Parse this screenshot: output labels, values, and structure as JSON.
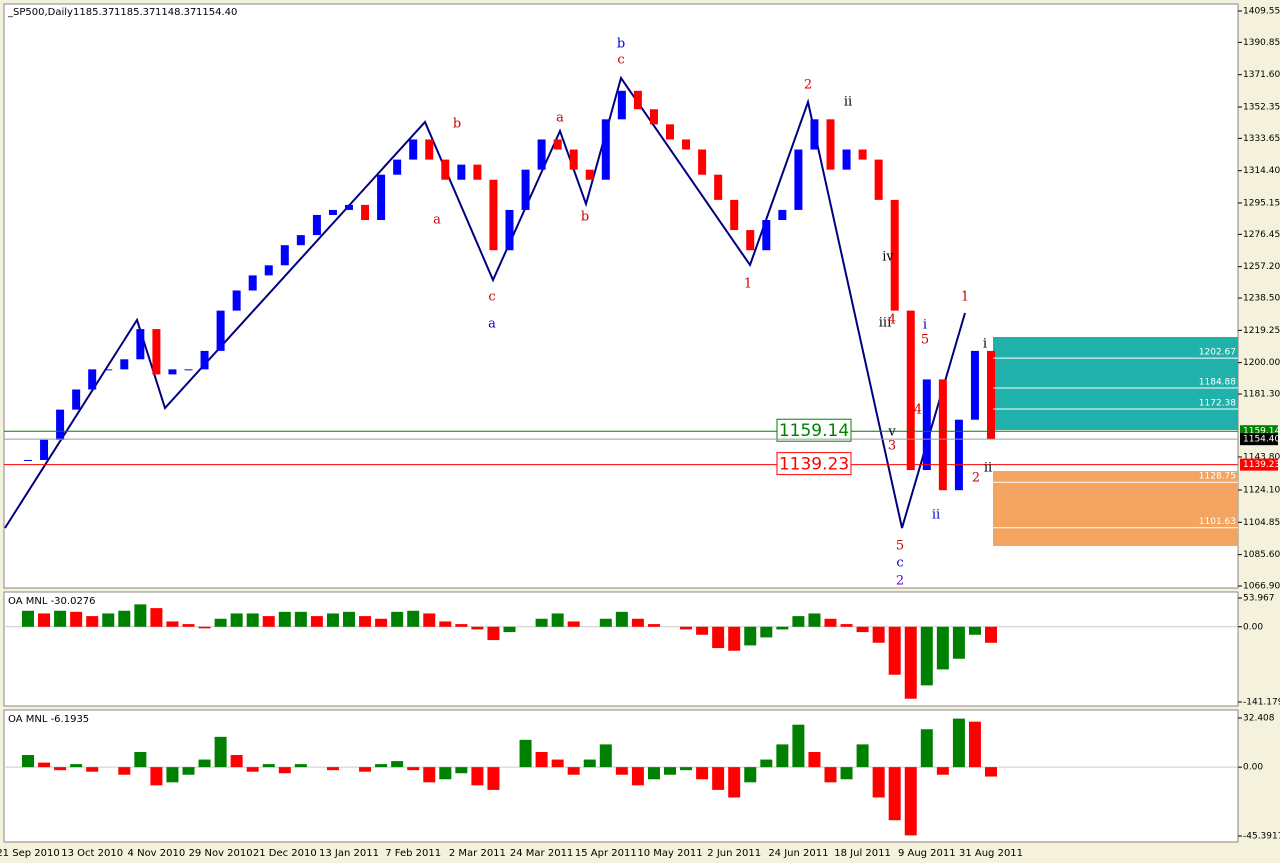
{
  "chart_data": [
    {
      "type": "candlestick",
      "title": "_SP500,Daily",
      "ohlc": [
        1185.37,
        1185.37,
        1148.37,
        {
          "value": 1154.4,
          "label": "1154.40"
        }
      ],
      "categories": [
        "21 Sep 2010",
        null,
        null,
        null,
        "13 Oct 2010",
        null,
        null,
        null,
        "4 Nov 2010",
        null,
        null,
        null,
        "29 Nov 2010",
        null,
        null,
        null,
        "21 Dec 2010",
        null,
        null,
        null,
        "13 Jan 2011",
        null,
        null,
        null,
        "7 Feb 2011",
        null,
        null,
        null,
        "2 Mar 2011",
        null,
        null,
        null,
        "24 Mar 2011",
        null,
        null,
        null,
        "15 Apr 2011",
        null,
        null,
        null,
        "10 May 2011",
        null,
        null,
        null,
        "2 Jun 2011",
        null,
        null,
        null,
        "24 Jun 2011",
        null,
        null,
        null,
        "18 Jul 2011",
        null,
        null,
        null,
        "9 Aug 2011",
        null,
        null,
        null,
        "31 Aug 2011"
      ],
      "values": [
        1142,
        1154,
        1172,
        1184,
        1196,
        1196,
        1202,
        1220,
        1193,
        1196,
        1196,
        1207,
        1231,
        1243,
        1252,
        1258,
        1270,
        1276,
        1288,
        1291,
        1294,
        1285,
        1312,
        1321,
        1333,
        1321,
        1309,
        1318,
        1309,
        1267,
        1291,
        1315,
        1333,
        1327,
        1315,
        1309,
        1345,
        1362,
        1351,
        1342,
        1333,
        1327,
        1312,
        1297,
        1279,
        1267,
        1285,
        1291,
        1327,
        1345,
        1315,
        1327,
        1321,
        1297,
        1231,
        1136,
        1190,
        1124,
        1166,
        1207,
        1154.4
      ],
      "up_color": "#0000ff",
      "down_color": "#ff0000",
      "ylim": [
        1066.9,
        1409.55
      ],
      "yticks": [
        1409.55,
        1390.85,
        {
          "value": 1371.6,
          "label": "1371.60"
        },
        1352.35,
        1333.65,
        {
          "value": 1314.4,
          "label": "1314.40"
        },
        1295.15,
        1276.45,
        {
          "value": 1257.2,
          "label": "1257.20"
        },
        {
          "value": 1238.5,
          "label": "1238.50"
        },
        1219.25,
        {
          "value": 1200,
          "label": "1200.00"
        },
        {
          "value": 1181.3,
          "label": "1181.30"
        },
        {
          "value": 1143.8,
          "label": "1143.80"
        },
        {
          "value": 1124.1,
          "label": "1124.10"
        },
        1104.85,
        {
          "value": 1085.6,
          "label": "1085.60"
        },
        {
          "value": 1066.9,
          "label": "1066.90"
        }
      ],
      "levels": [
        {
          "value": 1159.14,
          "color": "#008000"
        },
        {
          "value": 1139.23,
          "color": "#ff0000"
        }
      ],
      "zone_levels": [
        1202.67,
        1184.88,
        1172.38,
        1128.75,
        1101.63
      ],
      "annotations": [
        {
          "text": "b",
          "color": "#0000cc"
        },
        {
          "text": "c",
          "color": "#cc0000"
        },
        {
          "text": "a",
          "color": "#cc0000"
        },
        {
          "text": "b",
          "color": "#cc0000"
        },
        {
          "text": "c",
          "color": "#cc0000"
        },
        {
          "text": "a",
          "color": "#0000cc"
        },
        {
          "text": "a",
          "color": "#cc0000"
        },
        {
          "text": "b",
          "color": "#cc0000"
        },
        {
          "text": "2",
          "color": "#cc0000"
        },
        {
          "text": "ii",
          "color": "#000000"
        },
        {
          "text": "1",
          "color": "#cc0000"
        },
        {
          "text": "iv",
          "color": "#000000"
        },
        {
          "text": "iii",
          "color": "#000000"
        },
        {
          "text": "4",
          "color": "#cc0000"
        },
        {
          "text": "5",
          "color": "#cc0000"
        },
        {
          "text": "i",
          "color": "#0000cc"
        },
        {
          "text": "4",
          "color": "#cc0000"
        },
        {
          "text": "3",
          "color": "#cc0000"
        },
        {
          "text": "v",
          "color": "#000000"
        },
        {
          "text": "5",
          "color": "#cc0000"
        },
        {
          "text": "c",
          "color": "#0000cc"
        },
        {
          "text": "2",
          "color": "#6600cc"
        },
        {
          "text": "ii",
          "color": "#0000cc"
        },
        {
          "text": "1",
          "color": "#cc0000"
        },
        {
          "text": "i",
          "color": "#000000"
        },
        {
          "text": "2",
          "color": "#cc0000"
        },
        {
          "text": "ii",
          "color": "#000000"
        }
      ]
    },
    {
      "type": "histogram",
      "title": "OA MNL -30.0276",
      "values": [
        30,
        25,
        30,
        28,
        20,
        25,
        30,
        42,
        35,
        10,
        5,
        -3,
        15,
        25,
        25,
        20,
        28,
        28,
        20,
        25,
        28,
        20,
        15,
        28,
        30,
        25,
        10,
        5,
        -5,
        -25,
        -10,
        0,
        15,
        25,
        10,
        0,
        15,
        28,
        15,
        5,
        0,
        -5,
        -15,
        -40,
        -45,
        -35,
        -20,
        -5,
        20,
        25,
        15,
        5,
        -10,
        -30,
        -90,
        -135,
        -110,
        -80,
        -60,
        -15,
        -30.0276
      ],
      "rising_color": "#008000",
      "falling_color": "#ff0000",
      "ylim": [
        -141.179,
        53.967
      ],
      "yticks": [
        53.967,
        {
          "value": 0,
          "label": "0.00"
        },
        -141.179
      ]
    },
    {
      "type": "histogram",
      "title": "OA MNL -6.1935",
      "values": [
        8,
        3,
        -2,
        2,
        -3,
        0,
        -5,
        10,
        -12,
        -10,
        -5,
        5,
        20,
        8,
        -3,
        2,
        -4,
        2,
        0,
        -2,
        0,
        -3,
        2,
        4,
        -2,
        -10,
        -8,
        -4,
        -12,
        -15,
        0,
        18,
        10,
        5,
        -5,
        5,
        15,
        -5,
        -12,
        -8,
        -5,
        -2,
        -8,
        -15,
        -20,
        -10,
        5,
        15,
        28,
        10,
        -10,
        -8,
        15,
        -20,
        -35,
        -45,
        25,
        -5,
        32,
        30,
        -6.1935
      ],
      "rising_color": "#008000",
      "falling_color": "#ff0000",
      "ylim": [
        -45.3917,
        32.408
      ],
      "yticks": [
        32.408,
        {
          "value": 0,
          "label": "0.00"
        },
        -45.3917
      ]
    }
  ]
}
